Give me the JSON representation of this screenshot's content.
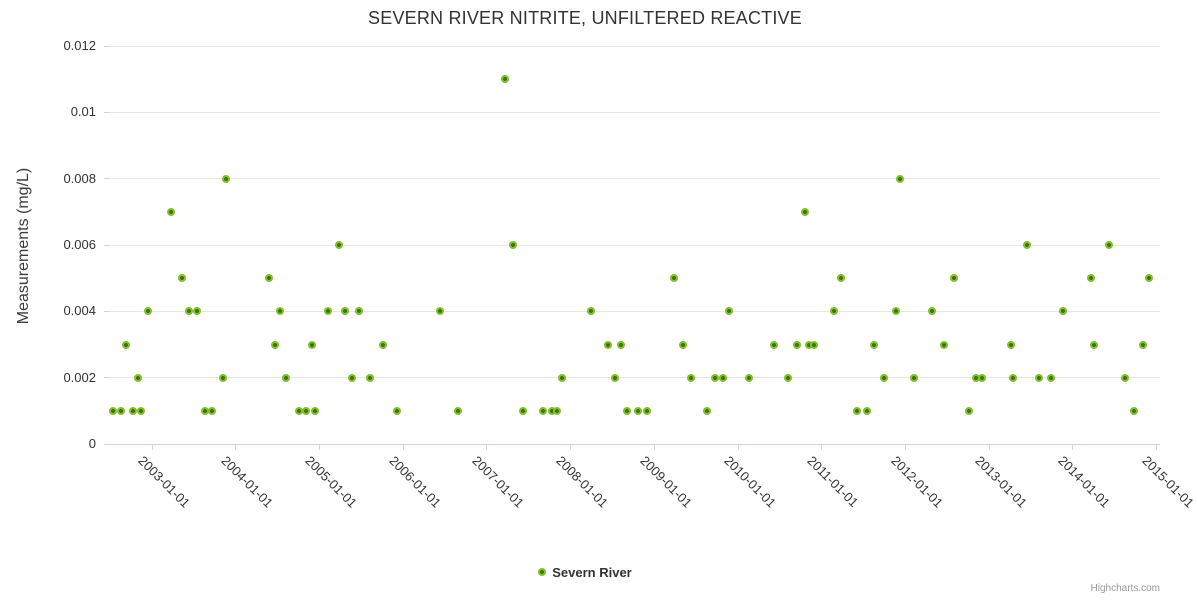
{
  "title": "SEVERN RIVER NITRITE, UNFILTERED REACTIVE",
  "credit": "Highcharts.com",
  "legend": {
    "label": "Severn River"
  },
  "colors": {
    "point_outer": "#82bf2c",
    "point_core": "#3f770b",
    "grid": "#e6e6e6",
    "axis": "#ccd6eb",
    "text": "#333333",
    "credit_text": "#999999"
  },
  "chart_data": {
    "type": "scatter",
    "title": "SEVERN RIVER NITRITE, UNFILTERED REACTIVE",
    "xlabel": "",
    "ylabel": "Measurements (mg/L)",
    "ylim": [
      0,
      0.012
    ],
    "yticks": [
      0,
      0.002,
      0.004,
      0.006,
      0.008,
      0.01,
      0.012
    ],
    "ytick_labels": [
      "0",
      "0.002",
      "0.004",
      "0.006",
      "0.008",
      "0.01",
      "0.012"
    ],
    "xticks": [
      "2003-01-01",
      "2004-01-01",
      "2005-01-01",
      "2006-01-01",
      "2007-01-01",
      "2008-01-01",
      "2009-01-01",
      "2010-01-01",
      "2011-01-01",
      "2012-01-01",
      "2013-01-01",
      "2014-01-01",
      "2015-01-01"
    ],
    "xlim": [
      "2002-07-02",
      "2015-01-18"
    ],
    "grid": "horizontal-only",
    "legend_position": "bottom-center",
    "series": [
      {
        "name": "Severn River",
        "color": "#82bf2c",
        "points": [
          [
            "2002-07-15",
            0.001
          ],
          [
            "2002-08-18",
            0.001
          ],
          [
            "2002-09-13",
            0.003
          ],
          [
            "2002-10-12",
            0.001
          ],
          [
            "2002-11-03",
            0.002
          ],
          [
            "2002-11-14",
            0.001
          ],
          [
            "2002-12-17",
            0.004
          ],
          [
            "2003-03-25",
            0.007
          ],
          [
            "2003-05-12",
            0.005
          ],
          [
            "2003-06-13",
            0.004
          ],
          [
            "2003-07-16",
            0.004
          ],
          [
            "2003-08-22",
            0.001
          ],
          [
            "2003-09-20",
            0.001
          ],
          [
            "2003-11-07",
            0.002
          ],
          [
            "2003-11-21",
            0.008
          ],
          [
            "2004-05-26",
            0.005
          ],
          [
            "2004-06-21",
            0.003
          ],
          [
            "2004-07-13",
            0.004
          ],
          [
            "2004-08-08",
            0.002
          ],
          [
            "2004-10-05",
            0.001
          ],
          [
            "2004-11-03",
            0.001
          ],
          [
            "2004-12-02",
            0.003
          ],
          [
            "2004-12-13",
            0.001
          ],
          [
            "2005-02-09",
            0.004
          ],
          [
            "2005-03-28",
            0.006
          ],
          [
            "2005-04-23",
            0.004
          ],
          [
            "2005-05-22",
            0.002
          ],
          [
            "2005-06-24",
            0.004
          ],
          [
            "2005-08-10",
            0.002
          ],
          [
            "2005-10-05",
            0.003
          ],
          [
            "2005-12-06",
            0.001
          ],
          [
            "2006-06-10",
            0.004
          ],
          [
            "2006-08-29",
            0.001
          ],
          [
            "2007-03-21",
            0.011
          ],
          [
            "2007-04-27",
            0.006
          ],
          [
            "2007-06-10",
            0.001
          ],
          [
            "2007-09-06",
            0.001
          ],
          [
            "2007-10-12",
            0.001
          ],
          [
            "2007-11-03",
            0.001
          ],
          [
            "2007-11-25",
            0.002
          ],
          [
            "2008-04-01",
            0.004
          ],
          [
            "2008-06-13",
            0.003
          ],
          [
            "2008-07-16",
            0.002
          ],
          [
            "2008-08-10",
            0.003
          ],
          [
            "2008-09-05",
            0.001
          ],
          [
            "2008-10-23",
            0.001
          ],
          [
            "2008-12-02",
            0.001
          ],
          [
            "2009-03-28",
            0.005
          ],
          [
            "2009-05-08",
            0.003
          ],
          [
            "2009-06-10",
            0.002
          ],
          [
            "2009-08-18",
            0.001
          ],
          [
            "2009-09-24",
            0.002
          ],
          [
            "2009-10-30",
            0.002
          ],
          [
            "2009-11-25",
            0.004
          ],
          [
            "2010-02-20",
            0.002
          ],
          [
            "2010-06-06",
            0.003
          ],
          [
            "2010-08-08",
            0.002
          ],
          [
            "2010-09-17",
            0.003
          ],
          [
            "2010-10-23",
            0.007
          ],
          [
            "2010-11-07",
            0.003
          ],
          [
            "2010-11-29",
            0.003
          ],
          [
            "2011-02-24",
            0.004
          ],
          [
            "2011-03-28",
            0.005
          ],
          [
            "2011-06-06",
            0.001
          ],
          [
            "2011-07-20",
            0.001
          ],
          [
            "2011-08-18",
            0.003
          ],
          [
            "2011-10-01",
            0.002
          ],
          [
            "2011-11-21",
            0.004
          ],
          [
            "2011-12-09",
            0.008
          ],
          [
            "2012-02-09",
            0.002
          ],
          [
            "2012-04-26",
            0.004
          ],
          [
            "2012-06-21",
            0.003
          ],
          [
            "2012-08-03",
            0.005
          ],
          [
            "2012-10-08",
            0.001
          ],
          [
            "2012-11-06",
            0.002
          ],
          [
            "2012-12-02",
            0.002
          ],
          [
            "2013-04-08",
            0.003
          ],
          [
            "2013-04-16",
            0.002
          ],
          [
            "2013-06-17",
            0.006
          ],
          [
            "2013-08-07",
            0.002
          ],
          [
            "2013-09-28",
            0.002
          ],
          [
            "2013-11-21",
            0.004
          ],
          [
            "2014-03-21",
            0.005
          ],
          [
            "2014-04-05",
            0.003
          ],
          [
            "2014-06-10",
            0.006
          ],
          [
            "2014-08-18",
            0.002
          ],
          [
            "2014-09-28",
            0.001
          ],
          [
            "2014-11-06",
            0.003
          ],
          [
            "2014-12-02",
            0.005
          ]
        ]
      }
    ]
  }
}
